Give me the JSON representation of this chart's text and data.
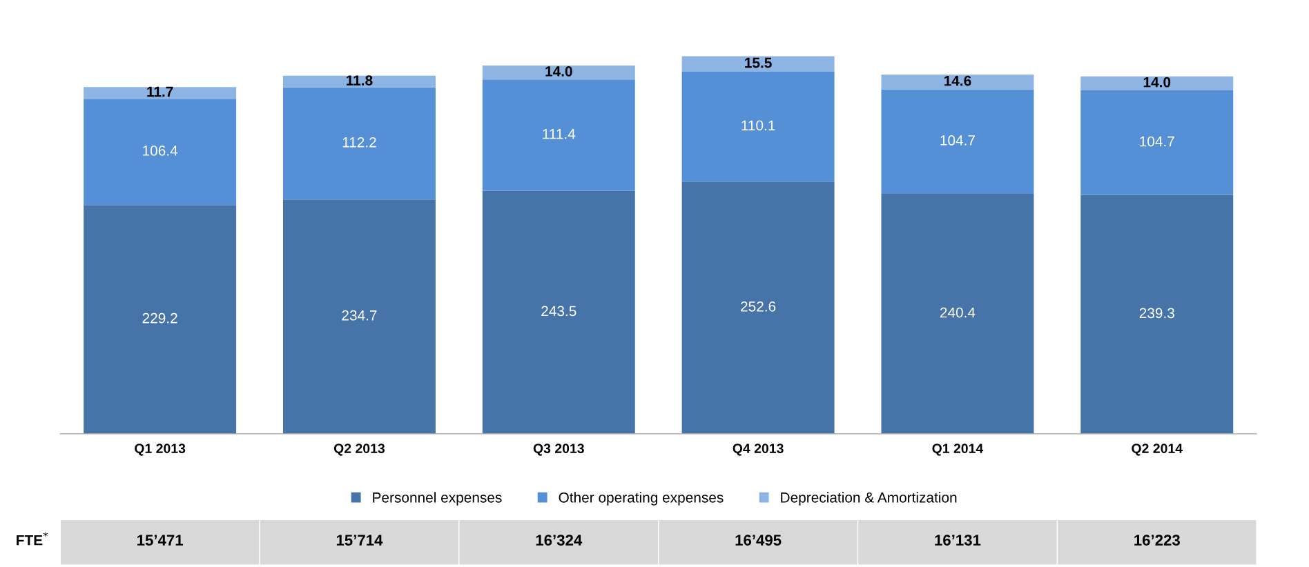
{
  "chart_data": {
    "type": "bar",
    "stacked": true,
    "legend": "bottom",
    "grid": false,
    "categories": [
      "Q1 2013",
      "Q2 2013",
      "Q3 2013",
      "Q4 2013",
      "Q1 2014",
      "Q2 2014"
    ],
    "series": [
      {
        "name": "Personnel expenses",
        "color": "#4674a8",
        "values": [
          229.2,
          234.7,
          243.5,
          252.6,
          240.4,
          239.3
        ],
        "value_labels": [
          "229.2",
          "234.7",
          "243.5",
          "252.6",
          "240.4",
          "239.3"
        ]
      },
      {
        "name": "Other operating expenses",
        "color": "#558fd6",
        "values": [
          106.4,
          112.2,
          111.4,
          110.1,
          104.7,
          104.7
        ],
        "value_labels": [
          "106.4",
          "112.2",
          "111.4",
          "110.1",
          "104.7",
          "104.7"
        ]
      },
      {
        "name": "Depreciation & Amortization",
        "color": "#8db4e2",
        "values": [
          11.7,
          11.8,
          14.0,
          15.5,
          14.6,
          14.0
        ],
        "value_labels": [
          "11.7",
          "11.8",
          "14.0",
          "15.5",
          "14.6",
          "14.0"
        ]
      }
    ],
    "annotations": [
      "FTE$^{*}$",
      "15’471",
      "15’714",
      "16’324",
      "16’495",
      "16’131",
      "16’223"
    ]
  }
}
